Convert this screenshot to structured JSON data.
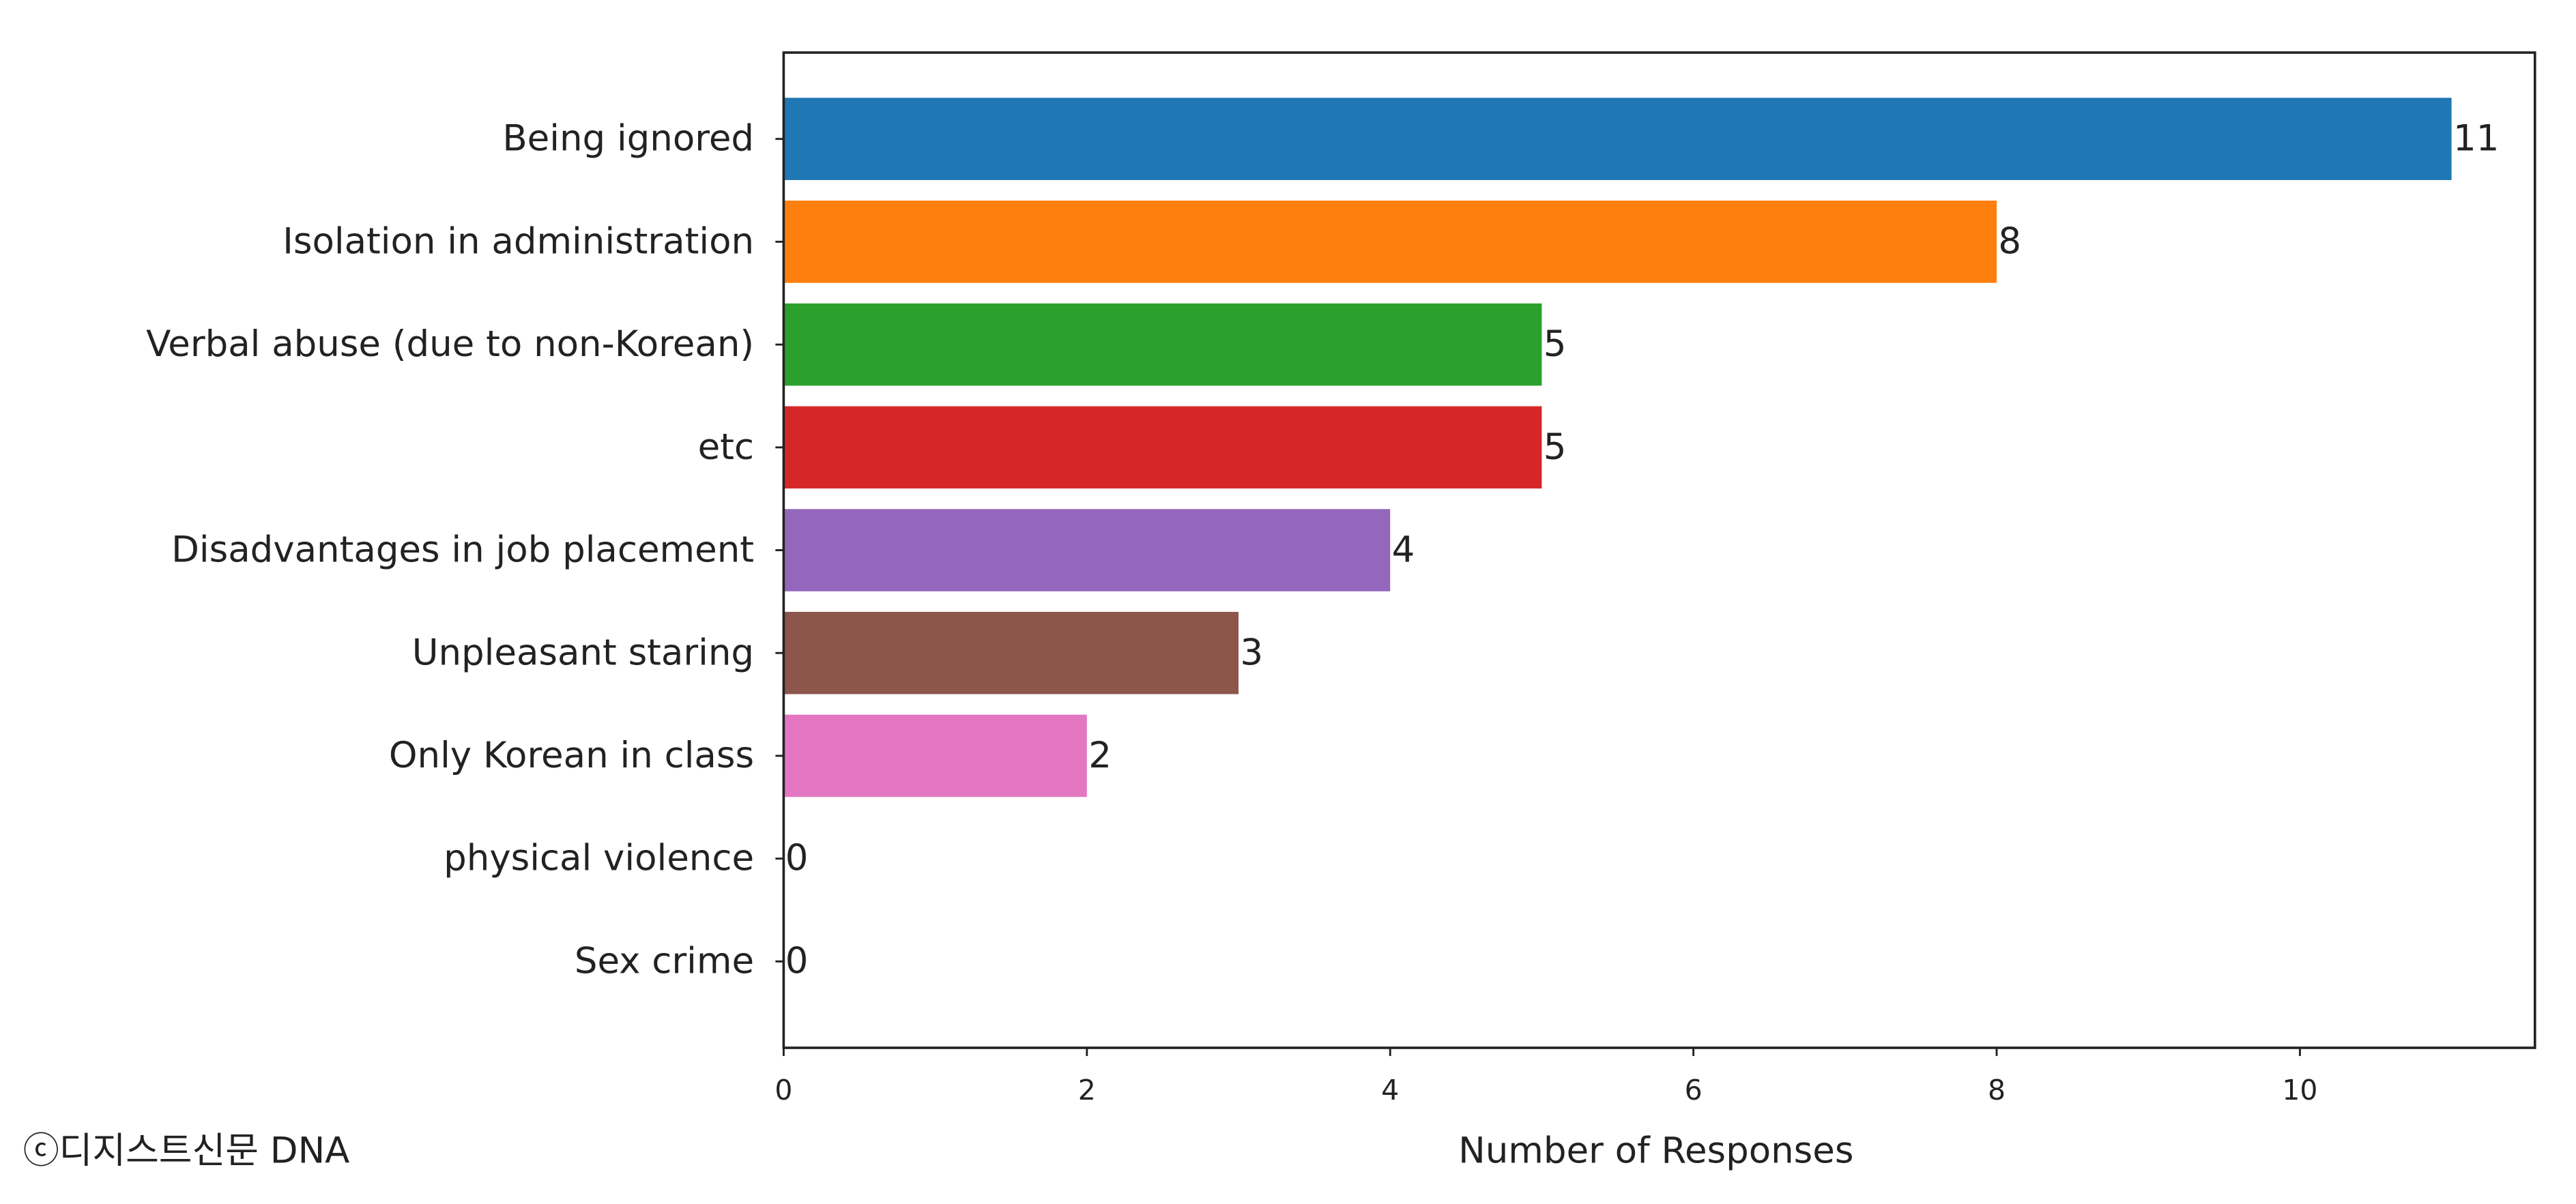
{
  "chart_data": {
    "type": "barh",
    "categories": [
      "Being ignored",
      "Isolation in administration",
      "Verbal abuse (due to non-Korean)",
      "etc",
      "Disadvantages in job placement",
      "Unpleasant staring",
      "Only Korean in class",
      "physical violence",
      "Sex crime"
    ],
    "values": [
      11,
      8,
      5,
      5,
      4,
      3,
      2,
      0,
      0
    ],
    "colors": [
      "#1f77b4",
      "#ff7f0e",
      "#2ca02c",
      "#d62728",
      "#9467bd",
      "#8c564b",
      "#e377c2",
      "#7f7f7f",
      "#bcbd22"
    ],
    "xlabel": "Number of Responses",
    "xlim": [
      0,
      11.55
    ],
    "xticks": [
      0,
      2,
      4,
      6,
      8,
      10
    ],
    "watermark": "ⓒ디지스트신문 DNA"
  }
}
